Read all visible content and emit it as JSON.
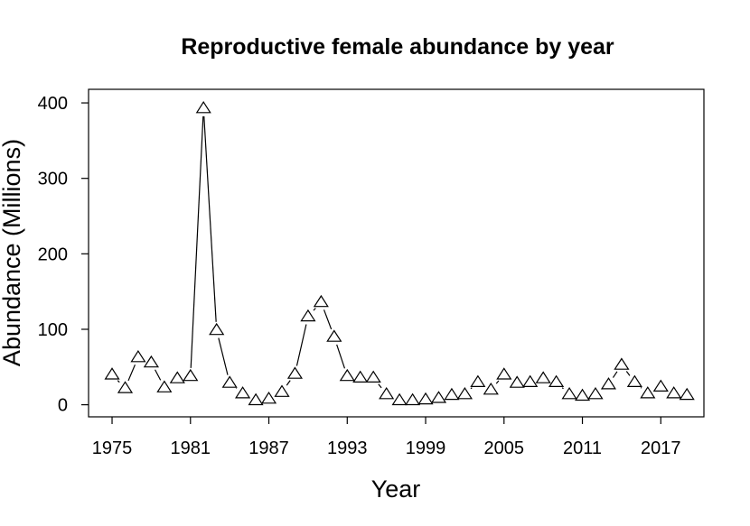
{
  "chart_data": {
    "type": "line",
    "title": "Reproductive female abundance by year",
    "xlabel": "Year",
    "ylabel": "Abundance (Millions)",
    "marker": "open-triangle",
    "line_color": "#000000",
    "xlim": [
      1973.2,
      2020.3
    ],
    "ylim": [
      -16,
      418
    ],
    "x_ticks": [
      1975,
      1981,
      1987,
      1993,
      1999,
      2005,
      2011,
      2017
    ],
    "y_ticks": [
      0,
      100,
      200,
      300,
      400
    ],
    "x": [
      1975,
      1976,
      1977,
      1978,
      1979,
      1980,
      1981,
      1982,
      1983,
      1984,
      1985,
      1986,
      1987,
      1988,
      1989,
      1990,
      1991,
      1992,
      1993,
      1994,
      1995,
      1996,
      1997,
      1998,
      1999,
      2000,
      2001,
      2002,
      2003,
      2004,
      2005,
      2006,
      2007,
      2008,
      2009,
      2010,
      2011,
      2012,
      2013,
      2014,
      2015,
      2016,
      2017,
      2018,
      2019
    ],
    "values": [
      40,
      22,
      63,
      56,
      23,
      35,
      38,
      393,
      99,
      29,
      15,
      6,
      8,
      17,
      41,
      117,
      136,
      90,
      38,
      36,
      36,
      14,
      6,
      6,
      7,
      9,
      13,
      14,
      30,
      20,
      40,
      29,
      30,
      35,
      30,
      14,
      12,
      14,
      27,
      53,
      30,
      15,
      24,
      15,
      13
    ]
  }
}
